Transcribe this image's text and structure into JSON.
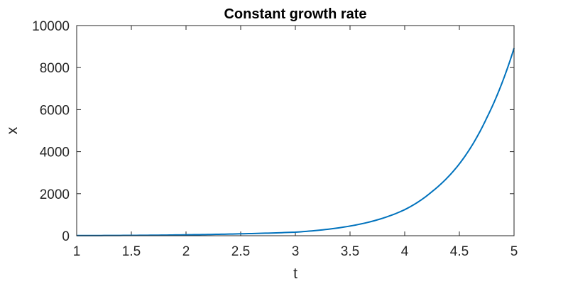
{
  "chart_data": {
    "type": "line",
    "title": "Constant growth rate",
    "xlabel": "t",
    "ylabel": "x",
    "xlim": [
      1,
      5
    ],
    "ylim": [
      0,
      10000
    ],
    "x_ticks": [
      1,
      1.5,
      2,
      2.5,
      3,
      3.5,
      4,
      4.5,
      5
    ],
    "x_tick_labels": [
      "1",
      "1.5",
      "2",
      "2.5",
      "3",
      "3.5",
      "4",
      "4.5",
      "5"
    ],
    "y_ticks": [
      0,
      2000,
      4000,
      6000,
      8000,
      10000
    ],
    "y_tick_labels": [
      "0",
      "2000",
      "4000",
      "6000",
      "8000",
      "10000"
    ],
    "grid": false,
    "box": true,
    "series": [
      {
        "color": "#0072bd",
        "x": [
          1,
          1.5,
          2,
          2.5,
          3,
          3.5,
          4,
          4.25,
          4.5,
          4.75,
          5
        ],
        "y": [
          7,
          17,
          44,
          91,
          170,
          460,
          1240,
          2100,
          3420,
          5600,
          8920
        ]
      }
    ]
  }
}
